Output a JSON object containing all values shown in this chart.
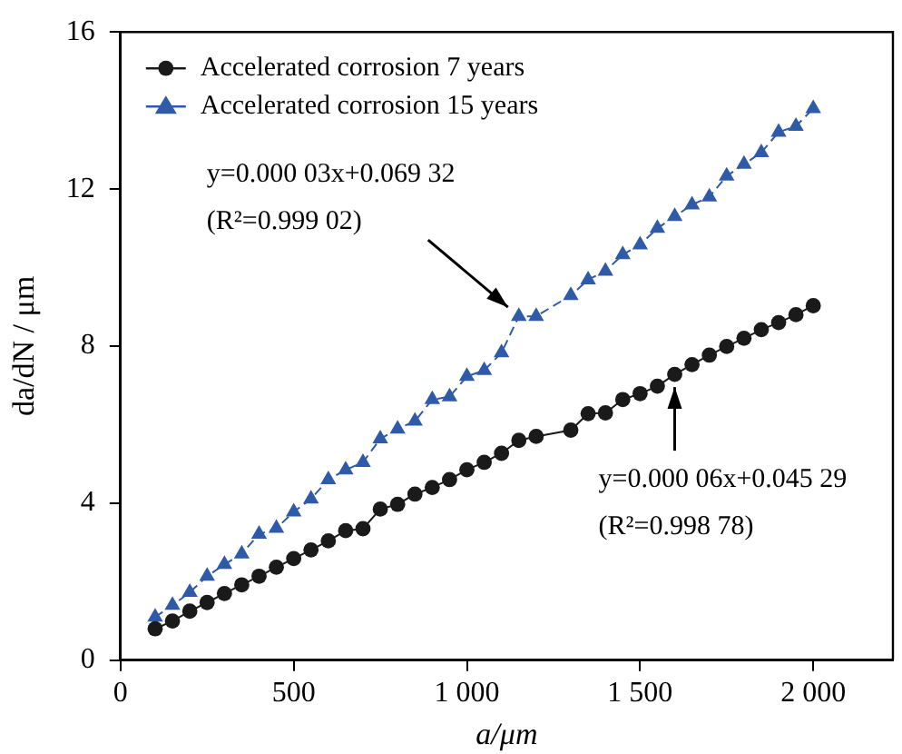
{
  "chart_data": {
    "type": "line",
    "xlabel": "a/μm",
    "ylabel": "da/dN / μm",
    "x": [
      100,
      150,
      200,
      250,
      300,
      350,
      400,
      450,
      500,
      550,
      600,
      650,
      700,
      750,
      800,
      850,
      900,
      950,
      1000,
      1050,
      1100,
      1150,
      1200,
      1300,
      1350,
      1400,
      1450,
      1500,
      1550,
      1600,
      1650,
      1700,
      1750,
      1800,
      1850,
      1900,
      1950,
      2000
    ],
    "series": [
      {
        "name": "Accelerated corrosion 7 years",
        "color": "#1a1a1a",
        "marker": "circle",
        "line_style": "solid",
        "values": [
          0.8,
          1.0,
          1.25,
          1.47,
          1.7,
          1.92,
          2.14,
          2.37,
          2.59,
          2.81,
          3.04,
          3.3,
          3.35,
          3.85,
          3.97,
          4.23,
          4.4,
          4.6,
          4.85,
          5.04,
          5.27,
          5.6,
          5.7,
          5.86,
          6.28,
          6.3,
          6.64,
          6.79,
          6.98,
          7.28,
          7.53,
          7.77,
          7.99,
          8.2,
          8.42,
          8.6,
          8.8,
          9.03
        ]
      },
      {
        "name": "Accelerated corrosion 15 years",
        "color": "#2e5aa8",
        "marker": "triangle",
        "line_style": "dashed",
        "values": [
          1.1,
          1.4,
          1.73,
          2.14,
          2.44,
          2.71,
          3.21,
          3.36,
          3.78,
          4.11,
          4.6,
          4.85,
          5.04,
          5.64,
          5.89,
          6.09,
          6.64,
          6.71,
          7.23,
          7.38,
          7.83,
          8.76,
          8.76,
          9.29,
          9.69,
          9.91,
          10.33,
          10.58,
          11.0,
          11.3,
          11.6,
          11.8,
          12.33,
          12.63,
          12.93,
          13.45,
          13.6,
          14.05
        ]
      }
    ],
    "xlim": [
      0,
      2230
    ],
    "xticks": [
      {
        "value": 0,
        "label": "0"
      },
      {
        "value": 500,
        "label": "500"
      },
      {
        "value": 1000,
        "label": "1 000"
      },
      {
        "value": 1500,
        "label": "1 500"
      },
      {
        "value": 2000,
        "label": "2 000"
      }
    ],
    "ylim": [
      0,
      16
    ],
    "yticks": [
      0,
      4,
      8,
      12,
      16
    ],
    "grid": false,
    "legend": "top left",
    "annotations": [
      {
        "text": "y=0.000 03x+0.069 32\n(R²=0.999 02)",
        "x": 1150,
        "y": 8.76
      },
      {
        "text": "y=0.000 06x+0.045 29\n(R²=0.998 78)",
        "x": 1600,
        "y": 7.28
      }
    ]
  }
}
